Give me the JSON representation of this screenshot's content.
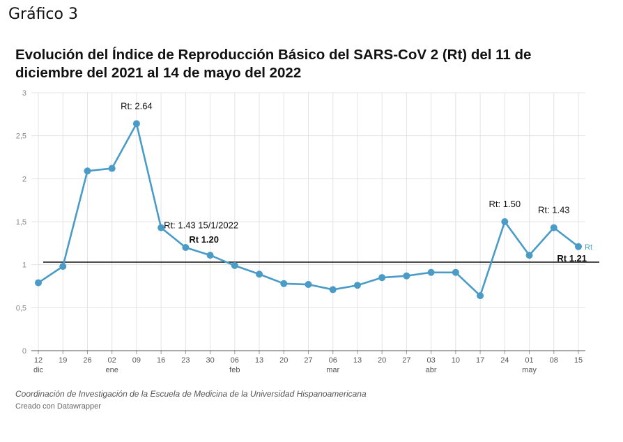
{
  "heading": "Gráfico 3",
  "source": "Coordinación de Investigación de la Escuela de Medicina de la Universidad Hispanoamericana",
  "credit": "Creado con Datawrapper",
  "colors": {
    "line": "#4a9cc7",
    "reference": "#111111",
    "grid": "#e3e3e3"
  },
  "chart_data": {
    "type": "line",
    "title": "Evolución del Índice de Reproducción Básico del SARS-CoV 2 (Rt) del  11 de diciembre del 2021 al 14 de mayo del 2022",
    "xlabel": "",
    "ylabel": "",
    "ylim": [
      0,
      3
    ],
    "yticks": [
      "0",
      "0,5",
      "1",
      "1,5",
      "2",
      "2,5",
      "3"
    ],
    "x": [
      "12 dic",
      "19",
      "26",
      "02 ene",
      "09",
      "16",
      "23",
      "30",
      "06 feb",
      "13",
      "20",
      "27",
      "06 mar",
      "13",
      "20",
      "27",
      "03 abr",
      "10",
      "17",
      "24",
      "01 may",
      "08",
      "15"
    ],
    "x_ticks": [
      {
        "day": "12",
        "month": "dic"
      },
      {
        "day": "19",
        "month": ""
      },
      {
        "day": "26",
        "month": ""
      },
      {
        "day": "02",
        "month": "ene"
      },
      {
        "day": "09",
        "month": ""
      },
      {
        "day": "16",
        "month": ""
      },
      {
        "day": "23",
        "month": ""
      },
      {
        "day": "30",
        "month": ""
      },
      {
        "day": "06",
        "month": "feb"
      },
      {
        "day": "13",
        "month": ""
      },
      {
        "day": "20",
        "month": ""
      },
      {
        "day": "27",
        "month": ""
      },
      {
        "day": "06",
        "month": "mar"
      },
      {
        "day": "13",
        "month": ""
      },
      {
        "day": "20",
        "month": ""
      },
      {
        "day": "27",
        "month": ""
      },
      {
        "day": "03",
        "month": "abr"
      },
      {
        "day": "10",
        "month": ""
      },
      {
        "day": "17",
        "month": ""
      },
      {
        "day": "24",
        "month": ""
      },
      {
        "day": "01",
        "month": "may"
      },
      {
        "day": "08",
        "month": ""
      },
      {
        "day": "15",
        "month": ""
      }
    ],
    "series": [
      {
        "name": "Rt",
        "values": [
          0.79,
          0.98,
          2.09,
          2.12,
          2.64,
          1.43,
          1.2,
          1.11,
          0.99,
          0.89,
          0.78,
          0.77,
          0.71,
          0.76,
          0.85,
          0.87,
          0.91,
          0.91,
          0.64,
          1.5,
          1.11,
          1.43,
          1.21
        ]
      }
    ],
    "reference_line": {
      "y": 1.03
    },
    "grid": true,
    "annotations": [
      {
        "text": "Rt: 2.64",
        "x_index": 4,
        "y": 2.64,
        "bold": false,
        "place": "above"
      },
      {
        "text": "Rt: 1.43  15/1/2022",
        "x_index": 5,
        "y": 1.43,
        "bold": false,
        "place": "right"
      },
      {
        "text": "Rt 1.20",
        "x_index": 6,
        "y": 1.2,
        "bold": true,
        "place": "above-right"
      },
      {
        "text": "Rt: 1.50",
        "x_index": 19,
        "y": 1.5,
        "bold": false,
        "place": "above"
      },
      {
        "text": "Rt: 1.43",
        "x_index": 21,
        "y": 1.43,
        "bold": false,
        "place": "above"
      },
      {
        "text": "Rt 1.21",
        "x_index": 22,
        "y": 1.21,
        "bold": true,
        "place": "below-left"
      }
    ]
  }
}
